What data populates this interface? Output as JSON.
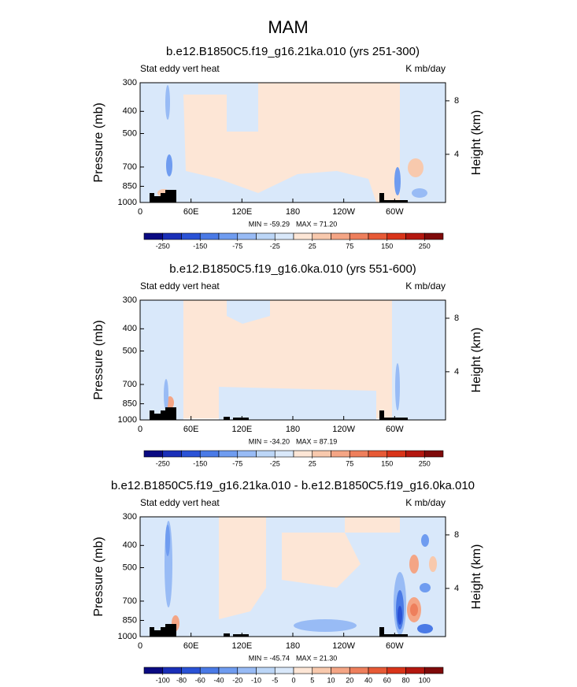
{
  "title": "MAM",
  "chart_data": [
    {
      "type": "contour",
      "title": "b.e12.B1850C5.f19_g16.21ka.010 (yrs 251-300)",
      "left_label": "Stat eddy vert heat",
      "right_label": "K mb/day",
      "ylabel": "Pressure (mb)",
      "y2label": "Height (km)",
      "log_y": true,
      "ylim": [
        1000,
        300
      ],
      "yticks": [
        300,
        400,
        500,
        700,
        850,
        1000
      ],
      "y2lim": [
        0.4,
        9.35
      ],
      "y2ticks": [
        4,
        8
      ],
      "xlim": [
        0,
        360
      ],
      "xticks": [
        0,
        {
          "value": 60,
          "label": "60E"
        },
        {
          "value": 120,
          "label": "120E"
        },
        180,
        {
          "value": 240,
          "label": "120W"
        },
        {
          "value": 300,
          "label": "60W"
        }
      ],
      "min": {
        "value": -59.29,
        "label": "MIN = -59.29"
      },
      "max": {
        "value": 71.2,
        "label": "MAX =  71.20"
      },
      "colorbar": {
        "ticks": [
          -250,
          -150,
          -75,
          -25,
          25,
          75,
          150,
          250
        ],
        "colors": [
          "#0a0a82",
          "#1a2fb8",
          "#2a52d6",
          "#4a7ae6",
          "#6f9cf0",
          "#98bbf5",
          "#bcd6f7",
          "#d9e8fa",
          "#fde6d6",
          "#f8c9ad",
          "#f4a585",
          "#ee7f5c",
          "#e75a36",
          "#d93419",
          "#b4170f",
          "#7f0a0a"
        ]
      }
    },
    {
      "type": "contour",
      "title": "b.e12.B1850C5.f19_g16.0ka.010 (yrs 551-600)",
      "left_label": "Stat eddy vert heat",
      "right_label": "K mb/day",
      "ylabel": "Pressure (mb)",
      "y2label": "Height (km)",
      "log_y": true,
      "ylim": [
        1000,
        300
      ],
      "yticks": [
        300,
        400,
        500,
        700,
        850,
        1000
      ],
      "y2lim": [
        0.4,
        9.35
      ],
      "y2ticks": [
        4,
        8
      ],
      "xlim": [
        0,
        360
      ],
      "xticks": [
        0,
        {
          "value": 60,
          "label": "60E"
        },
        {
          "value": 120,
          "label": "120E"
        },
        180,
        {
          "value": 240,
          "label": "120W"
        },
        {
          "value": 300,
          "label": "60W"
        }
      ],
      "min": {
        "value": -34.2,
        "label": "MIN = -34.20"
      },
      "max": {
        "value": 87.19,
        "label": "MAX =  87.19"
      },
      "colorbar": {
        "ticks": [
          -250,
          -150,
          -75,
          -25,
          25,
          75,
          150,
          250
        ],
        "colors": [
          "#0a0a82",
          "#1a2fb8",
          "#2a52d6",
          "#4a7ae6",
          "#6f9cf0",
          "#98bbf5",
          "#bcd6f7",
          "#d9e8fa",
          "#fde6d6",
          "#f8c9ad",
          "#f4a585",
          "#ee7f5c",
          "#e75a36",
          "#d93419",
          "#b4170f",
          "#7f0a0a"
        ]
      }
    },
    {
      "type": "contour",
      "title": "b.e12.B1850C5.f19_g16.21ka.010 - b.e12.B1850C5.f19_g16.0ka.010",
      "left_label": "Stat eddy vert heat",
      "right_label": "K mb/day",
      "ylabel": "Pressure (mb)",
      "y2label": "Height (km)",
      "log_y": true,
      "ylim": [
        1000,
        300
      ],
      "yticks": [
        300,
        400,
        500,
        700,
        850,
        1000
      ],
      "y2lim": [
        0.4,
        9.35
      ],
      "y2ticks": [
        4,
        8
      ],
      "xlim": [
        0,
        360
      ],
      "xticks": [
        0,
        {
          "value": 60,
          "label": "60E"
        },
        {
          "value": 120,
          "label": "120E"
        },
        180,
        {
          "value": 240,
          "label": "120W"
        },
        {
          "value": 300,
          "label": "60W"
        }
      ],
      "min": {
        "value": -45.74,
        "label": "MIN = -45.74"
      },
      "max": {
        "value": 21.3,
        "label": "MAX =  21.30"
      },
      "colorbar": {
        "ticks": [
          -100,
          -80,
          -60,
          -40,
          -20,
          -10,
          -5,
          0,
          5,
          10,
          20,
          40,
          60,
          80,
          100
        ],
        "colors": [
          "#0a0a82",
          "#1a2fb8",
          "#2a52d6",
          "#4a7ae6",
          "#6f9cf0",
          "#98bbf5",
          "#bcd6f7",
          "#d9e8fa",
          "#fde6d6",
          "#f8c9ad",
          "#f4a585",
          "#ee7f5c",
          "#e75a36",
          "#d93419",
          "#b4170f",
          "#7f0a0a"
        ]
      }
    }
  ]
}
